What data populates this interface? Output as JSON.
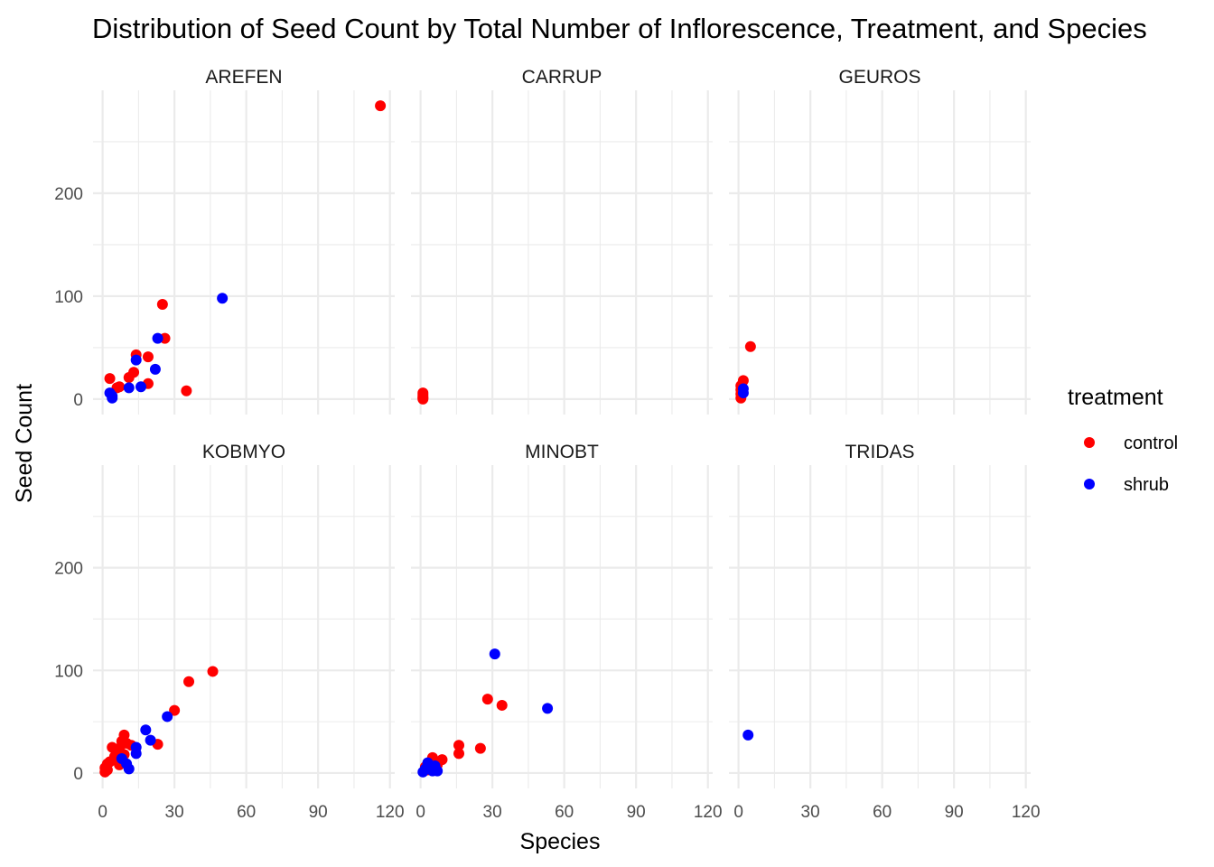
{
  "chart_data": {
    "type": "scatter",
    "title": "Distribution of Seed Count by Total Number of Inflorescence, Treatment, and Species",
    "xlabel": "Species",
    "ylabel": "Seed Count",
    "xlim": [
      -4,
      122
    ],
    "ylim": [
      -15,
      300
    ],
    "x_ticks": [
      0,
      30,
      60,
      90,
      120
    ],
    "y_ticks": [
      0,
      100,
      200
    ],
    "grid": true,
    "legend": {
      "title": "treatment",
      "position": "right",
      "entries": [
        {
          "name": "control",
          "color": "#ff0000"
        },
        {
          "name": "shrub",
          "color": "#0000ff"
        }
      ]
    },
    "facets": [
      {
        "name": "AREFEN",
        "points": [
          {
            "x": 116,
            "y": 285,
            "treatment": "control"
          },
          {
            "x": 25,
            "y": 92,
            "treatment": "control"
          },
          {
            "x": 26,
            "y": 59,
            "treatment": "control"
          },
          {
            "x": 14,
            "y": 43,
            "treatment": "control"
          },
          {
            "x": 19,
            "y": 41,
            "treatment": "control"
          },
          {
            "x": 13,
            "y": 26,
            "treatment": "control"
          },
          {
            "x": 11,
            "y": 21,
            "treatment": "control"
          },
          {
            "x": 3,
            "y": 20,
            "treatment": "control"
          },
          {
            "x": 19,
            "y": 15,
            "treatment": "control"
          },
          {
            "x": 7,
            "y": 12,
            "treatment": "control"
          },
          {
            "x": 6,
            "y": 11,
            "treatment": "control"
          },
          {
            "x": 35,
            "y": 8,
            "treatment": "control"
          },
          {
            "x": 50,
            "y": 98,
            "treatment": "shrub"
          },
          {
            "x": 23,
            "y": 59,
            "treatment": "shrub"
          },
          {
            "x": 14,
            "y": 38,
            "treatment": "shrub"
          },
          {
            "x": 22,
            "y": 29,
            "treatment": "shrub"
          },
          {
            "x": 16,
            "y": 12,
            "treatment": "shrub"
          },
          {
            "x": 11,
            "y": 11,
            "treatment": "shrub"
          },
          {
            "x": 3,
            "y": 6,
            "treatment": "shrub"
          },
          {
            "x": 4,
            "y": 3,
            "treatment": "shrub"
          },
          {
            "x": 4,
            "y": 1,
            "treatment": "shrub"
          }
        ]
      },
      {
        "name": "CARRUP",
        "points": [
          {
            "x": 1,
            "y": 6,
            "treatment": "control"
          },
          {
            "x": 1,
            "y": 4,
            "treatment": "control"
          },
          {
            "x": 1,
            "y": 2,
            "treatment": "control"
          },
          {
            "x": 1,
            "y": 1,
            "treatment": "control"
          },
          {
            "x": 1,
            "y": 0,
            "treatment": "control"
          }
        ]
      },
      {
        "name": "GEUROS",
        "points": [
          {
            "x": 5,
            "y": 51,
            "treatment": "control"
          },
          {
            "x": 2,
            "y": 18,
            "treatment": "control"
          },
          {
            "x": 1,
            "y": 13,
            "treatment": "control"
          },
          {
            "x": 1,
            "y": 9,
            "treatment": "control"
          },
          {
            "x": 1,
            "y": 5,
            "treatment": "control"
          },
          {
            "x": 1,
            "y": 1,
            "treatment": "control"
          },
          {
            "x": 2,
            "y": 10,
            "treatment": "shrub"
          },
          {
            "x": 2,
            "y": 6,
            "treatment": "shrub"
          }
        ]
      },
      {
        "name": "KOBMYO",
        "points": [
          {
            "x": 46,
            "y": 99,
            "treatment": "control"
          },
          {
            "x": 36,
            "y": 89,
            "treatment": "control"
          },
          {
            "x": 30,
            "y": 61,
            "treatment": "control"
          },
          {
            "x": 9,
            "y": 37,
            "treatment": "control"
          },
          {
            "x": 8,
            "y": 31,
            "treatment": "control"
          },
          {
            "x": 10,
            "y": 29,
            "treatment": "control"
          },
          {
            "x": 23,
            "y": 28,
            "treatment": "control"
          },
          {
            "x": 12,
            "y": 27,
            "treatment": "control"
          },
          {
            "x": 4,
            "y": 25,
            "treatment": "control"
          },
          {
            "x": 7,
            "y": 24,
            "treatment": "control"
          },
          {
            "x": 6,
            "y": 21,
            "treatment": "control"
          },
          {
            "x": 9,
            "y": 18,
            "treatment": "control"
          },
          {
            "x": 5,
            "y": 16,
            "treatment": "control"
          },
          {
            "x": 3,
            "y": 11,
            "treatment": "control"
          },
          {
            "x": 2,
            "y": 9,
            "treatment": "control"
          },
          {
            "x": 7,
            "y": 8,
            "treatment": "control"
          },
          {
            "x": 1,
            "y": 5,
            "treatment": "control"
          },
          {
            "x": 2,
            "y": 3,
            "treatment": "control"
          },
          {
            "x": 1,
            "y": 1,
            "treatment": "control"
          },
          {
            "x": 27,
            "y": 55,
            "treatment": "shrub"
          },
          {
            "x": 18,
            "y": 42,
            "treatment": "shrub"
          },
          {
            "x": 20,
            "y": 32,
            "treatment": "shrub"
          },
          {
            "x": 14,
            "y": 25,
            "treatment": "shrub"
          },
          {
            "x": 14,
            "y": 19,
            "treatment": "shrub"
          },
          {
            "x": 8,
            "y": 14,
            "treatment": "shrub"
          },
          {
            "x": 10,
            "y": 9,
            "treatment": "shrub"
          },
          {
            "x": 11,
            "y": 4,
            "treatment": "shrub"
          }
        ]
      },
      {
        "name": "MINOBT",
        "points": [
          {
            "x": 28,
            "y": 72,
            "treatment": "control"
          },
          {
            "x": 34,
            "y": 66,
            "treatment": "control"
          },
          {
            "x": 16,
            "y": 27,
            "treatment": "control"
          },
          {
            "x": 25,
            "y": 24,
            "treatment": "control"
          },
          {
            "x": 16,
            "y": 19,
            "treatment": "control"
          },
          {
            "x": 5,
            "y": 15,
            "treatment": "control"
          },
          {
            "x": 9,
            "y": 13,
            "treatment": "control"
          },
          {
            "x": 4,
            "y": 11,
            "treatment": "control"
          },
          {
            "x": 7,
            "y": 8,
            "treatment": "control"
          },
          {
            "x": 2,
            "y": 6,
            "treatment": "control"
          },
          {
            "x": 3,
            "y": 3,
            "treatment": "control"
          },
          {
            "x": 31,
            "y": 116,
            "treatment": "shrub"
          },
          {
            "x": 53,
            "y": 63,
            "treatment": "shrub"
          },
          {
            "x": 3,
            "y": 10,
            "treatment": "shrub"
          },
          {
            "x": 6,
            "y": 7,
            "treatment": "shrub"
          },
          {
            "x": 2,
            "y": 4,
            "treatment": "shrub"
          },
          {
            "x": 5,
            "y": 2,
            "treatment": "shrub"
          },
          {
            "x": 7,
            "y": 2,
            "treatment": "shrub"
          },
          {
            "x": 1,
            "y": 1,
            "treatment": "shrub"
          }
        ]
      },
      {
        "name": "TRIDAS",
        "points": [
          {
            "x": 4,
            "y": 37,
            "treatment": "shrub"
          }
        ]
      }
    ]
  }
}
